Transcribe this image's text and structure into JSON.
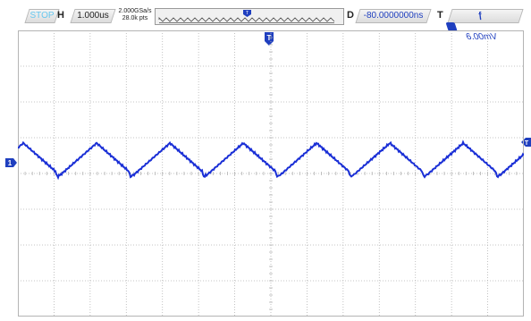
{
  "status": {
    "run_state": "STOP"
  },
  "horizontal": {
    "label": "H",
    "timebase": "1.000us"
  },
  "acquisition": {
    "sample_rate": "2.000GSa/s",
    "memory_depth": "28.0k pts"
  },
  "delay": {
    "label": "D",
    "value": "-80.0000000ns"
  },
  "trigger": {
    "label": "T",
    "slope": "rising-edge",
    "slope_glyph": "ƒ",
    "source": "1",
    "level": "6.00mV"
  },
  "markers": {
    "trigger_position": "T",
    "channel": "1",
    "trigger_level": "T"
  },
  "grid": {
    "divisions_x": 14,
    "divisions_y": 8
  },
  "colors": {
    "trace": "#1a2fd6",
    "stop": "#67c7ee",
    "channel": "#1f3fbf",
    "grid": "#b4b4b4"
  },
  "waveform": {
    "shape": "triangle",
    "periods_on_screen": 6.9,
    "grid_offset_div": 0.15,
    "peak_div": 0.85,
    "trough_div": -0.05
  }
}
